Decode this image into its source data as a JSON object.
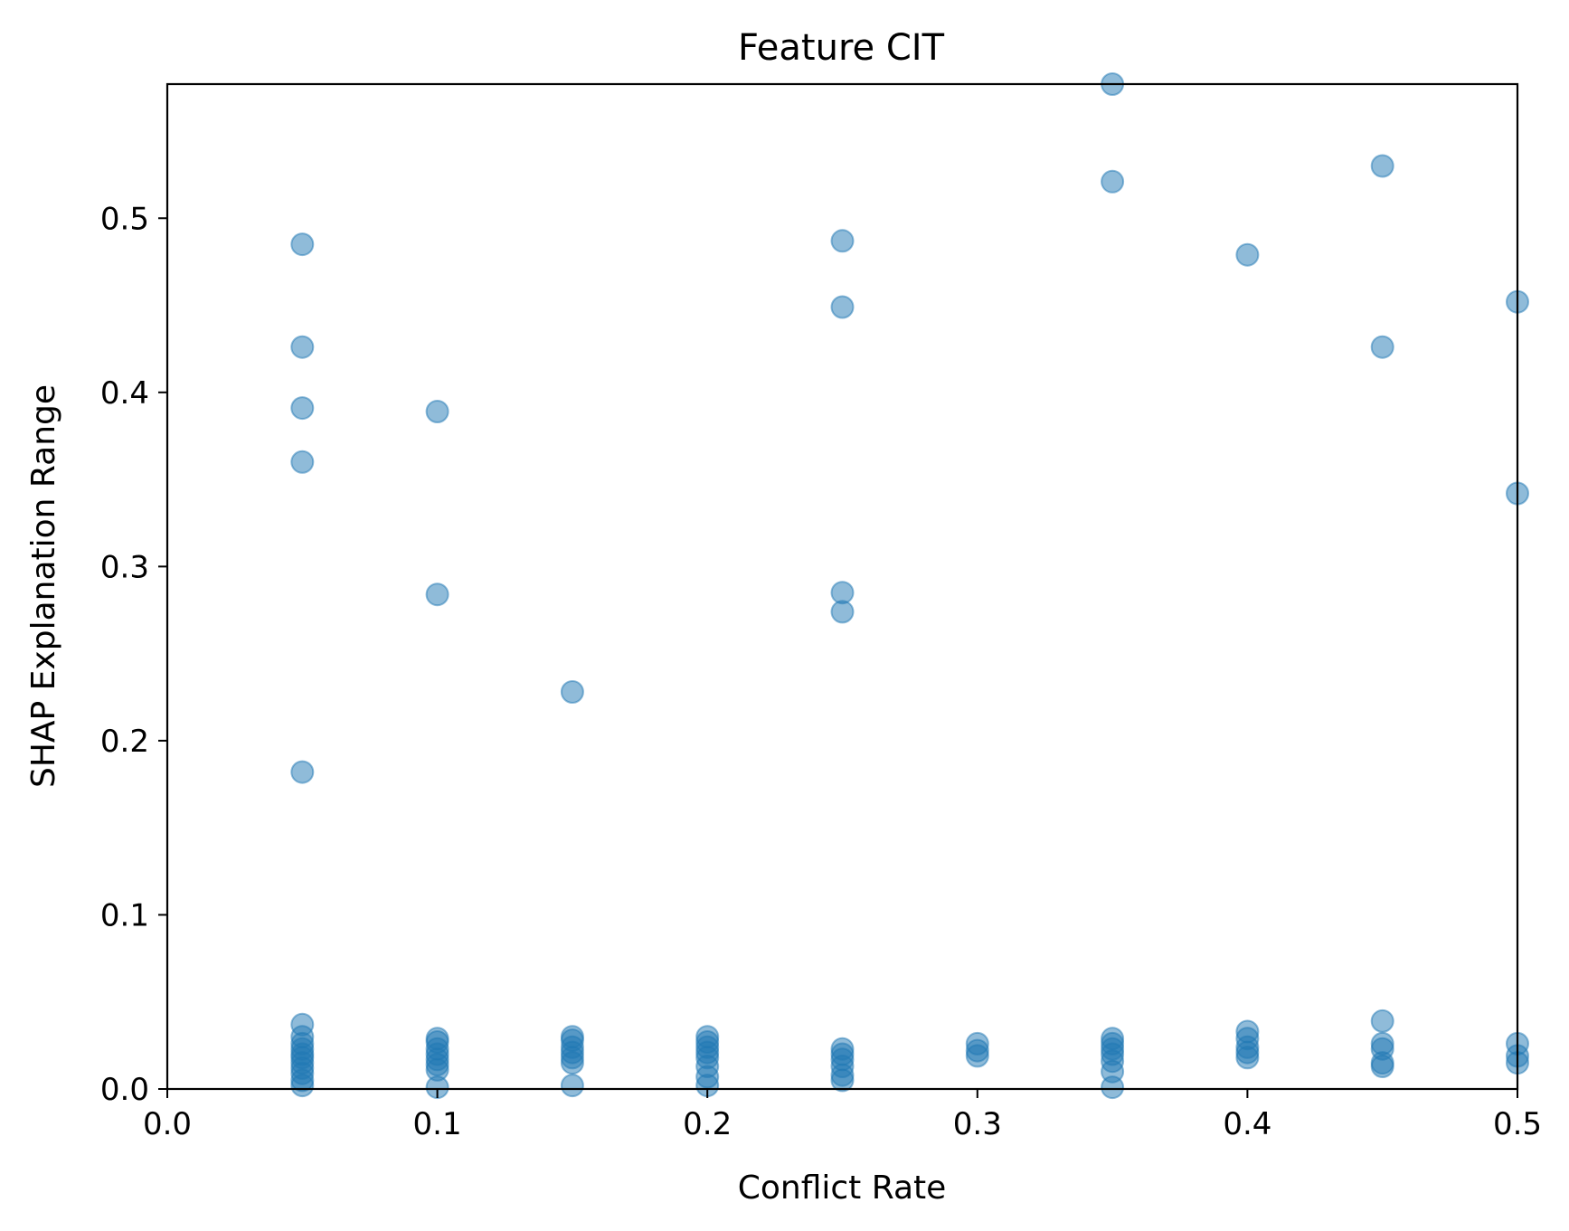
{
  "chart_data": {
    "type": "scatter",
    "title": "Feature CIT",
    "xlabel": "Conflict Rate",
    "ylabel": "SHAP Explanation Range",
    "xlim": [
      0.0,
      0.5
    ],
    "ylim": [
      0.0,
      0.577
    ],
    "xticks": [
      0.0,
      0.1,
      0.2,
      0.3,
      0.4,
      0.5
    ],
    "yticks": [
      0.0,
      0.1,
      0.2,
      0.3,
      0.4,
      0.5
    ],
    "xtick_labels": [
      "0.0",
      "0.1",
      "0.2",
      "0.3",
      "0.4",
      "0.5"
    ],
    "ytick_labels": [
      "0.0",
      "0.1",
      "0.2",
      "0.3",
      "0.4",
      "0.5"
    ],
    "grid": false,
    "marker_color": "#1f77b4",
    "marker_alpha": 0.5,
    "points": [
      {
        "x": 0.05,
        "y": 0.485
      },
      {
        "x": 0.05,
        "y": 0.426
      },
      {
        "x": 0.05,
        "y": 0.391
      },
      {
        "x": 0.05,
        "y": 0.36
      },
      {
        "x": 0.05,
        "y": 0.182
      },
      {
        "x": 0.05,
        "y": 0.037
      },
      {
        "x": 0.05,
        "y": 0.03
      },
      {
        "x": 0.05,
        "y": 0.026
      },
      {
        "x": 0.05,
        "y": 0.023
      },
      {
        "x": 0.05,
        "y": 0.02
      },
      {
        "x": 0.05,
        "y": 0.018
      },
      {
        "x": 0.05,
        "y": 0.015
      },
      {
        "x": 0.05,
        "y": 0.012
      },
      {
        "x": 0.05,
        "y": 0.009
      },
      {
        "x": 0.05,
        "y": 0.005
      },
      {
        "x": 0.05,
        "y": 0.002
      },
      {
        "x": 0.1,
        "y": 0.389
      },
      {
        "x": 0.1,
        "y": 0.284
      },
      {
        "x": 0.1,
        "y": 0.029
      },
      {
        "x": 0.1,
        "y": 0.027
      },
      {
        "x": 0.1,
        "y": 0.023
      },
      {
        "x": 0.1,
        "y": 0.02
      },
      {
        "x": 0.1,
        "y": 0.017
      },
      {
        "x": 0.1,
        "y": 0.014
      },
      {
        "x": 0.1,
        "y": 0.011
      },
      {
        "x": 0.1,
        "y": 0.001
      },
      {
        "x": 0.15,
        "y": 0.228
      },
      {
        "x": 0.15,
        "y": 0.03
      },
      {
        "x": 0.15,
        "y": 0.028
      },
      {
        "x": 0.15,
        "y": 0.024
      },
      {
        "x": 0.15,
        "y": 0.021
      },
      {
        "x": 0.15,
        "y": 0.018
      },
      {
        "x": 0.15,
        "y": 0.015
      },
      {
        "x": 0.15,
        "y": 0.002
      },
      {
        "x": 0.2,
        "y": 0.03
      },
      {
        "x": 0.2,
        "y": 0.027
      },
      {
        "x": 0.2,
        "y": 0.024
      },
      {
        "x": 0.2,
        "y": 0.021
      },
      {
        "x": 0.2,
        "y": 0.018
      },
      {
        "x": 0.2,
        "y": 0.013
      },
      {
        "x": 0.2,
        "y": 0.007
      },
      {
        "x": 0.2,
        "y": 0.002
      },
      {
        "x": 0.25,
        "y": 0.487
      },
      {
        "x": 0.25,
        "y": 0.449
      },
      {
        "x": 0.25,
        "y": 0.285
      },
      {
        "x": 0.25,
        "y": 0.274
      },
      {
        "x": 0.25,
        "y": 0.023
      },
      {
        "x": 0.25,
        "y": 0.02
      },
      {
        "x": 0.25,
        "y": 0.017
      },
      {
        "x": 0.25,
        "y": 0.013
      },
      {
        "x": 0.25,
        "y": 0.008
      },
      {
        "x": 0.25,
        "y": 0.005
      },
      {
        "x": 0.3,
        "y": 0.026
      },
      {
        "x": 0.3,
        "y": 0.022
      },
      {
        "x": 0.3,
        "y": 0.019
      },
      {
        "x": 0.35,
        "y": 0.577
      },
      {
        "x": 0.35,
        "y": 0.521
      },
      {
        "x": 0.35,
        "y": 0.029
      },
      {
        "x": 0.35,
        "y": 0.026
      },
      {
        "x": 0.35,
        "y": 0.023
      },
      {
        "x": 0.35,
        "y": 0.02
      },
      {
        "x": 0.35,
        "y": 0.016
      },
      {
        "x": 0.35,
        "y": 0.01
      },
      {
        "x": 0.35,
        "y": 0.001
      },
      {
        "x": 0.4,
        "y": 0.479
      },
      {
        "x": 0.4,
        "y": 0.033
      },
      {
        "x": 0.4,
        "y": 0.029
      },
      {
        "x": 0.4,
        "y": 0.024
      },
      {
        "x": 0.4,
        "y": 0.021
      },
      {
        "x": 0.4,
        "y": 0.018
      },
      {
        "x": 0.45,
        "y": 0.53
      },
      {
        "x": 0.45,
        "y": 0.426
      },
      {
        "x": 0.45,
        "y": 0.039
      },
      {
        "x": 0.45,
        "y": 0.026
      },
      {
        "x": 0.45,
        "y": 0.023
      },
      {
        "x": 0.45,
        "y": 0.015
      },
      {
        "x": 0.45,
        "y": 0.013
      },
      {
        "x": 0.5,
        "y": 0.452
      },
      {
        "x": 0.5,
        "y": 0.342
      },
      {
        "x": 0.5,
        "y": 0.026
      },
      {
        "x": 0.5,
        "y": 0.019
      },
      {
        "x": 0.5,
        "y": 0.015
      }
    ]
  }
}
